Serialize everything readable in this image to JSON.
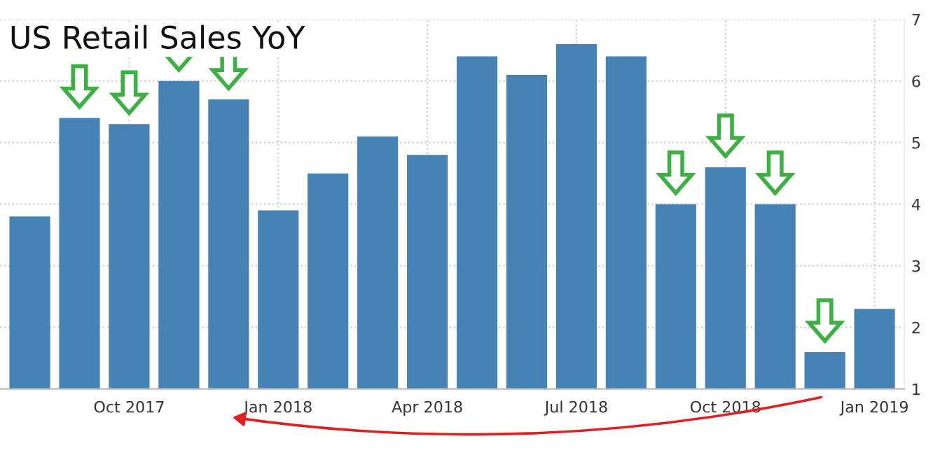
{
  "chart_data": {
    "type": "bar",
    "title": "US Retail Sales YoY",
    "categories": [
      null,
      null,
      "Oct 2017",
      null,
      null,
      "Jan 2018",
      null,
      null,
      "Apr 2018",
      null,
      null,
      "Jul 2018",
      null,
      null,
      "Oct 2018",
      null,
      null,
      "Jan 2019"
    ],
    "values": [
      3.8,
      5.4,
      5.3,
      6.0,
      5.7,
      3.9,
      4.5,
      5.1,
      4.8,
      6.4,
      6.1,
      6.6,
      6.4,
      4.0,
      4.6,
      4.0,
      1.6,
      2.3
    ],
    "color": "#4682b4",
    "ylim": [
      1,
      7
    ],
    "yticks": [
      1,
      2,
      3,
      4,
      5,
      6,
      7
    ],
    "grid": true
  }
}
